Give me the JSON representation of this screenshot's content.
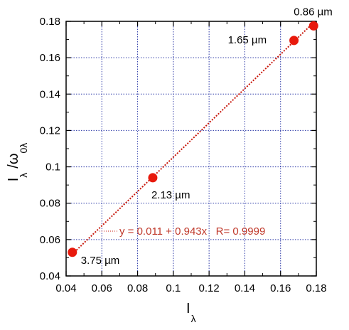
{
  "chart_data": {
    "type": "scatter",
    "title": "",
    "xlabel": "I",
    "xlabel_sub": "λ",
    "ylabel": "I",
    "ylabel_sub": "λ",
    "ylabel_part2": "/ω",
    "ylabel_part2_sub": "0λ",
    "xlim": [
      0.04,
      0.18
    ],
    "ylim": [
      0.04,
      0.18
    ],
    "xticks": [
      0.04,
      0.06,
      0.08,
      0.1,
      0.12,
      0.14,
      0.16,
      0.18
    ],
    "yticks": [
      0.04,
      0.06,
      0.08,
      0.1,
      0.12,
      0.14,
      0.16,
      0.18
    ],
    "xtick_labels": [
      "0.04",
      "0.06",
      "0.08",
      "0.1",
      "0.12",
      "0.14",
      "0.16",
      "0.18"
    ],
    "ytick_labels": [
      "0.04",
      "0.06",
      "0.08",
      "0.1",
      "0.12",
      "0.14",
      "0.16",
      "0.18"
    ],
    "grid": true,
    "series": [
      {
        "points": [
          {
            "x": 0.0435,
            "y": 0.053,
            "label": "3.75 µm"
          },
          {
            "x": 0.0885,
            "y": 0.094,
            "label": "2.13 µm"
          },
          {
            "x": 0.1675,
            "y": 0.1695,
            "label": "1.65 µm"
          },
          {
            "x": 0.1785,
            "y": 0.1775,
            "label": "0.86 µm"
          }
        ]
      }
    ],
    "fit": {
      "intercept": 0.011,
      "slope": 0.943,
      "x_range": [
        0.0435,
        0.1785
      ],
      "label": "y = 0.011 + 0.943x   R= 0.9999"
    },
    "colors": {
      "marker": "#e8190c",
      "fit_line": "#c8180c",
      "equation_text": "#c0392b",
      "grid": "#2d3aa8",
      "axis": "#000000"
    }
  }
}
